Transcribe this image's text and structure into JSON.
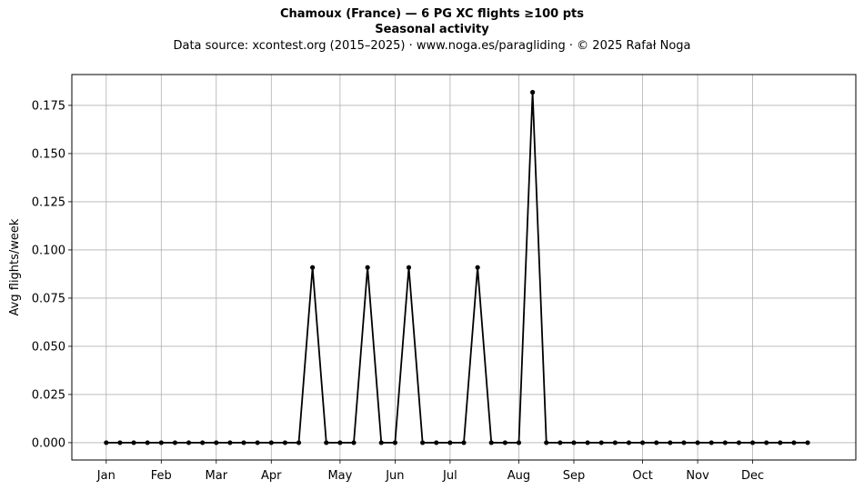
{
  "chart_data": {
    "type": "line",
    "title": "Chamoux (France)  —  6 PG XC flights ≥100 pts",
    "subtitle": "Seasonal activity",
    "source_note": "Data source: xcontest.org (2015–2025)  ·  www.noga.es/paragliding  ·  © 2025 Rafał Noga",
    "xlabel": "",
    "ylabel": "Avg flights/week",
    "x_tick_labels": [
      "Jan",
      "Feb",
      "Mar",
      "Apr",
      "May",
      "Jun",
      "Jul",
      "Aug",
      "Sep",
      "Oct",
      "Nov",
      "Dec"
    ],
    "x_tick_weeks": [
      1,
      5,
      9,
      13,
      18,
      22,
      26,
      31,
      35,
      40,
      44,
      48
    ],
    "y_ticks": [
      0.0,
      0.025,
      0.05,
      0.075,
      0.1,
      0.125,
      0.15,
      0.175
    ],
    "y_tick_labels": [
      "0.000",
      "0.025",
      "0.050",
      "0.075",
      "0.100",
      "0.125",
      "0.150",
      "0.175"
    ],
    "xlim": [
      -1.5,
      55.5
    ],
    "ylim": [
      -0.009,
      0.191
    ],
    "grid": true,
    "line_color": "#000000",
    "series": [
      {
        "x": [
          1,
          2,
          3,
          4,
          5,
          6,
          7,
          8,
          9,
          10,
          11,
          12,
          13,
          14,
          15,
          16,
          17,
          18,
          19,
          20,
          21,
          22,
          23,
          24,
          25,
          26,
          27,
          28,
          29,
          30,
          31,
          32,
          33,
          34,
          35,
          36,
          37,
          38,
          39,
          40,
          41,
          42,
          43,
          44,
          45,
          46,
          47,
          48,
          49,
          50,
          51,
          52
        ],
        "values": [
          0,
          0,
          0,
          0,
          0,
          0,
          0,
          0,
          0,
          0,
          0,
          0,
          0,
          0,
          0,
          0.0909,
          0,
          0,
          0,
          0.0909,
          0,
          0,
          0.0909,
          0,
          0,
          0,
          0,
          0.0909,
          0,
          0,
          0,
          0.1818,
          0,
          0,
          0,
          0,
          0,
          0,
          0,
          0,
          0,
          0,
          0,
          0,
          0,
          0,
          0,
          0,
          0,
          0,
          0,
          0
        ]
      }
    ]
  }
}
